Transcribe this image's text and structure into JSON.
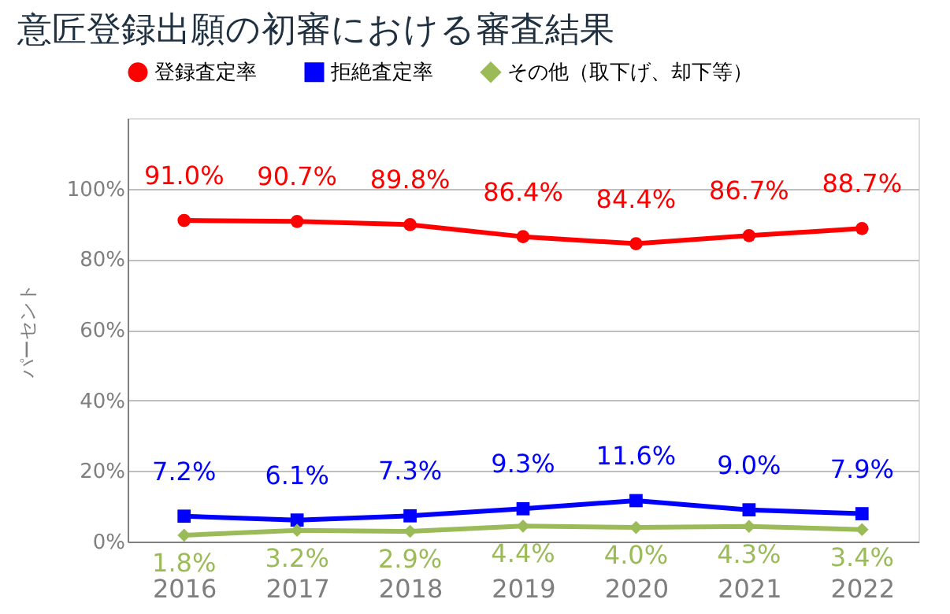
{
  "chart_data": {
    "type": "line",
    "title": "意匠登録出願の初審における審査結果",
    "ylabel": "パーセント",
    "categories": [
      "2016",
      "2017",
      "2018",
      "2019",
      "2020",
      "2021",
      "2022"
    ],
    "series": [
      {
        "name": "登録査定率",
        "color": "#ff0000",
        "marker": "circle",
        "values": [
          91.0,
          90.7,
          89.8,
          86.4,
          84.4,
          86.7,
          88.7
        ],
        "value_labels": [
          "91.0%",
          "90.7%",
          "89.8%",
          "86.4%",
          "84.4%",
          "86.7%",
          "88.7%"
        ]
      },
      {
        "name": "拒絶査定率",
        "color": "#0000ff",
        "marker": "square",
        "values": [
          7.2,
          6.1,
          7.3,
          9.3,
          11.6,
          9.0,
          7.9
        ],
        "value_labels": [
          "7.2%",
          "6.1%",
          "7.3%",
          "9.3%",
          "11.6%",
          "9.0%",
          "7.9%"
        ]
      },
      {
        "name": "その他（取下げ、却下等）",
        "color": "#9bbb59",
        "marker": "diamond",
        "values": [
          1.8,
          3.2,
          2.9,
          4.4,
          4.0,
          4.3,
          3.4
        ],
        "value_labels": [
          "1.8%",
          "3.2%",
          "2.9%",
          "4.4%",
          "4.0%",
          "4.3%",
          "3.4%"
        ]
      }
    ],
    "ylim": [
      0,
      120
    ],
    "yticks": [
      {
        "value": 0,
        "label": "0%"
      },
      {
        "value": 20,
        "label": "20%"
      },
      {
        "value": 40,
        "label": "40%"
      },
      {
        "value": 60,
        "label": "60%"
      },
      {
        "value": 80,
        "label": "80%"
      },
      {
        "value": 100,
        "label": "100%"
      }
    ],
    "grid": "y",
    "legend": "top"
  }
}
